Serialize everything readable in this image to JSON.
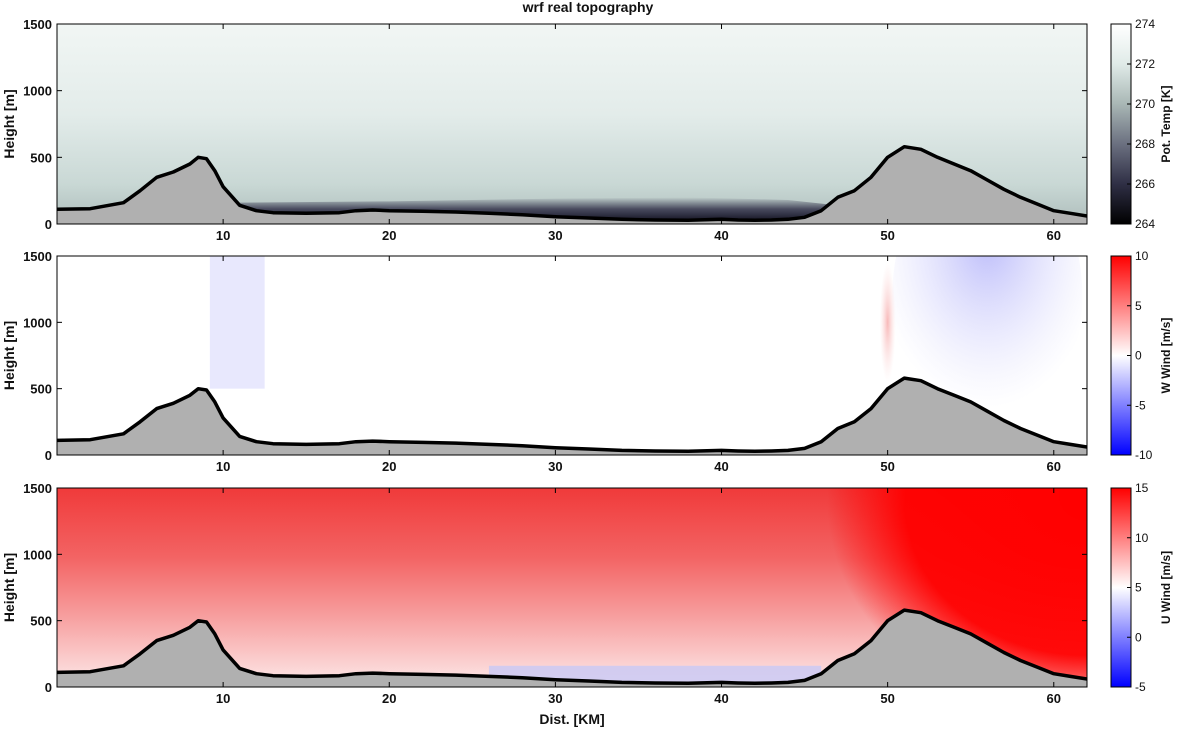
{
  "figure": {
    "title": "wrf real topography"
  },
  "chart_data": [
    {
      "type": "heatmap",
      "ylabel": "Height [m]",
      "xlabel": "",
      "colorbar_label": "Pot. Temp [K]",
      "xlim": [
        0,
        62
      ],
      "ylim": [
        0,
        1500
      ],
      "xticks": [
        10,
        20,
        30,
        40,
        50,
        60
      ],
      "yticks": [
        0,
        500,
        1000,
        1500
      ],
      "cbar_range": [
        264,
        274
      ],
      "cbar_ticks": [
        264,
        266,
        268,
        270,
        272,
        274
      ],
      "colormap": [
        "#000000",
        "#2f2f45",
        "#6b7080",
        "#a9b7b5",
        "#e0ebe8",
        "#ffffff"
      ]
    },
    {
      "type": "heatmap",
      "ylabel": "Height [m]",
      "xlabel": "",
      "colorbar_label": "W Wind [m/s]",
      "xlim": [
        0,
        62
      ],
      "ylim": [
        0,
        1500
      ],
      "xticks": [
        10,
        20,
        30,
        40,
        50,
        60
      ],
      "yticks": [
        0,
        500,
        1000,
        1500
      ],
      "cbar_range": [
        -10,
        10
      ],
      "cbar_ticks": [
        -10,
        -5,
        0,
        5,
        10
      ],
      "colormap": [
        "#0000ff",
        "#ffffff",
        "#ff0000"
      ]
    },
    {
      "type": "heatmap",
      "ylabel": "Height [m]",
      "xlabel": "Dist. [KM]",
      "colorbar_label": "U Wind [m/s]",
      "xlim": [
        0,
        62
      ],
      "ylim": [
        0,
        1500
      ],
      "xticks": [
        10,
        20,
        30,
        40,
        50,
        60
      ],
      "yticks": [
        0,
        500,
        1000,
        1500
      ],
      "cbar_range": [
        -5,
        15
      ],
      "cbar_ticks": [
        -5,
        0,
        5,
        10,
        15
      ],
      "colormap": [
        "#0000ff",
        "#ffffff",
        "#ff0000"
      ]
    }
  ],
  "terrain": {
    "fill": "#b0b0b0",
    "x": [
      0,
      2,
      4,
      5,
      6,
      7,
      8,
      8.5,
      9,
      9.5,
      10,
      11,
      12,
      13,
      15,
      17,
      18,
      19,
      20,
      22,
      24,
      26,
      28,
      30,
      32,
      34,
      36,
      38,
      40,
      41,
      42,
      43,
      44,
      45,
      46,
      47,
      48,
      49,
      50,
      51,
      52,
      53,
      54,
      55,
      56,
      57,
      58,
      59,
      60,
      61,
      62
    ],
    "y": [
      110,
      115,
      160,
      250,
      350,
      390,
      450,
      500,
      490,
      400,
      280,
      140,
      100,
      85,
      80,
      85,
      100,
      105,
      100,
      95,
      90,
      80,
      70,
      55,
      45,
      35,
      30,
      28,
      35,
      30,
      28,
      30,
      35,
      50,
      100,
      200,
      250,
      350,
      500,
      580,
      560,
      500,
      450,
      400,
      330,
      260,
      200,
      150,
      100,
      80,
      60
    ]
  }
}
